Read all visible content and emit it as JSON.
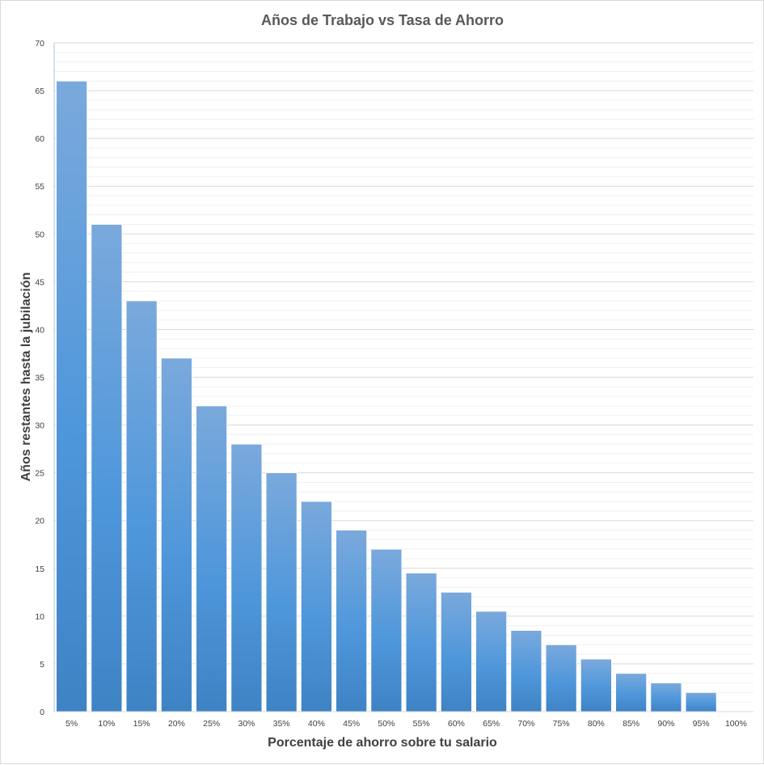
{
  "chart_data": {
    "type": "bar",
    "title": "Años de Trabajo  vs Tasa  de Ahorro",
    "xlabel": "Porcentaje de ahorro sobre tu salario",
    "ylabel": "Años restantes hasta la jubilación",
    "categories": [
      "5%",
      "10%",
      "15%",
      "20%",
      "25%",
      "30%",
      "35%",
      "40%",
      "45%",
      "50%",
      "55%",
      "60%",
      "65%",
      "70%",
      "75%",
      "80%",
      "85%",
      "90%",
      "95%",
      "100%"
    ],
    "values": [
      66,
      51,
      43,
      37,
      32,
      28,
      25,
      22,
      19,
      17,
      14.5,
      12.5,
      10.5,
      8.5,
      7,
      5.5,
      4,
      3,
      2,
      0
    ],
    "ylim": [
      0,
      70
    ],
    "yticks": [
      0,
      5,
      10,
      15,
      20,
      25,
      30,
      35,
      40,
      45,
      50,
      55,
      60,
      65,
      70
    ],
    "grid": true,
    "legend": "none",
    "colors": {
      "bar_top": "#7aa9dc",
      "bar_mid": "#4f97db",
      "bar_bottom": "#3e83c4",
      "grid": "#d9d9d9",
      "grid_minor": "#f0f0f0"
    }
  }
}
